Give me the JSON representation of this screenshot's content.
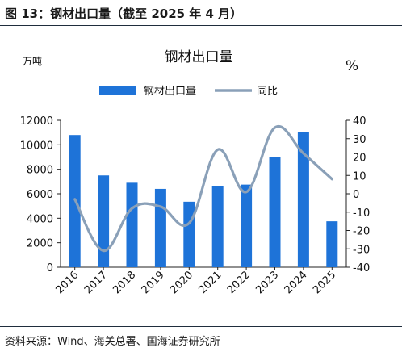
{
  "header": {
    "figure_title": "图 13：钢材出口量（截至 2025 年 4 月）"
  },
  "source": {
    "text": "资料来源：Wind、海关总署、国海证券研究所"
  },
  "chart_data": {
    "type": "bar",
    "title": "钢材出口量",
    "left_unit": "万吨",
    "right_unit": "%",
    "categories": [
      "2016",
      "2017",
      "2018",
      "2019",
      "2020",
      "2021",
      "2022",
      "2023",
      "2024",
      "2025"
    ],
    "series": [
      {
        "name": "钢材出口量",
        "type": "bar",
        "axis": "left",
        "color": "#1e73d8",
        "values": [
          10800,
          7500,
          6900,
          6400,
          5350,
          6650,
          6750,
          9000,
          11050,
          3750
        ]
      },
      {
        "name": "同比",
        "type": "line",
        "axis": "right",
        "color": "#8aa0b8",
        "values": [
          -3,
          -31,
          -8,
          -7,
          -16,
          24,
          1,
          36,
          22,
          8
        ]
      }
    ],
    "ylim_left": [
      0,
      12000
    ],
    "yticks_left": [
      0,
      2000,
      4000,
      6000,
      8000,
      10000,
      12000
    ],
    "ylim_right": [
      -40,
      40
    ],
    "yticks_right": [
      -40,
      -30,
      -20,
      -10,
      0,
      10,
      20,
      30,
      40
    ],
    "legend_position": "top-center",
    "grid": false
  }
}
